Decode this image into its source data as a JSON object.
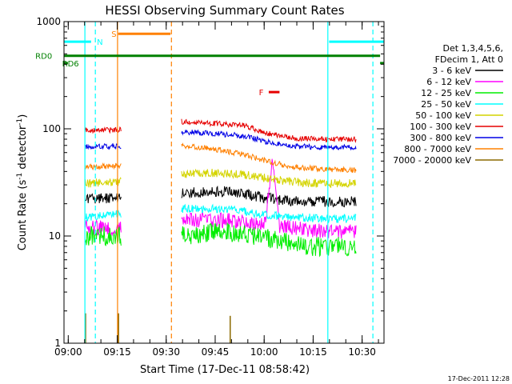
{
  "chart_data": {
    "type": "line",
    "title": "HESSI Observing Summary Count Rates",
    "xlabel": "Start Time (17-Dec-11 08:58:42)",
    "ylabel": "Count Rate (s⁻¹ detector⁻¹)",
    "ylabel_parts": {
      "pre": "Count Rate (s",
      "sup1": "-1",
      "mid": " detector",
      "sup2": "-1",
      "post": ")"
    },
    "scale": {
      "y": "log",
      "x": "time"
    },
    "x_unit": "minutes after 08:58:42",
    "xlim": [
      0,
      98
    ],
    "ylim": [
      1,
      1000
    ],
    "x_ticks": [
      {
        "label": "09:00",
        "t": 1.3
      },
      {
        "label": "09:15",
        "t": 16.3
      },
      {
        "label": "09:30",
        "t": 31.3
      },
      {
        "label": "09:45",
        "t": 46.3
      },
      {
        "label": "10:00",
        "t": 61.3
      },
      {
        "label": "10:15",
        "t": 76.3
      },
      {
        "label": "10:30",
        "t": 91.3
      }
    ],
    "y_ticks": [
      {
        "label": "1",
        "v": 1
      },
      {
        "label": "10",
        "v": 10
      },
      {
        "label": "100",
        "v": 100
      },
      {
        "label": "1000",
        "v": 1000
      }
    ],
    "legend": {
      "position": "right",
      "header": [
        "Det 1,3,4,5,6,",
        "FDecim 1, Att 0"
      ],
      "entries": [
        {
          "name": "3 - 6 keV",
          "color": "#000000"
        },
        {
          "name": "6 - 12 keV",
          "color": "#ff00ff"
        },
        {
          "name": "12 - 25 keV",
          "color": "#00ee00"
        },
        {
          "name": "25 - 50 keV",
          "color": "#00ffff"
        },
        {
          "name": "50 - 100 keV",
          "color": "#d4d400"
        },
        {
          "name": "100 - 300 keV",
          "color": "#e60000"
        },
        {
          "name": "300 - 800 keV",
          "color": "#0000e6"
        },
        {
          "name": "800 - 7000 keV",
          "color": "#ff8000"
        },
        {
          "name": "7000 - 20000 keV",
          "color": "#8b6a00"
        }
      ]
    },
    "segments": [
      {
        "start": 6.5,
        "end": 17.5
      },
      {
        "start": 36.0,
        "end": 89.5
      }
    ],
    "series": [
      {
        "name": "3 - 6 keV",
        "color": "#000000",
        "noise": 0.05,
        "points": [
          [
            6.5,
            22
          ],
          [
            17.5,
            23
          ],
          [
            36.0,
            25
          ],
          [
            45,
            26
          ],
          [
            52,
            26
          ],
          [
            60,
            23
          ],
          [
            70,
            21
          ],
          [
            80,
            21
          ],
          [
            89.5,
            21
          ]
        ]
      },
      {
        "name": "6 - 12 keV",
        "color": "#ff00ff",
        "noise": 0.07,
        "points": [
          [
            6.5,
            12
          ],
          [
            17.5,
            12
          ],
          [
            36.0,
            14
          ],
          [
            50,
            14
          ],
          [
            60,
            13
          ],
          [
            70,
            12
          ],
          [
            80,
            11
          ],
          [
            89.5,
            11
          ]
        ],
        "spike": {
          "t": 63.8,
          "v": 48,
          "width": 2.2
        }
      },
      {
        "name": "12 - 25 keV",
        "color": "#00ee00",
        "noise": 0.09,
        "points": [
          [
            6.5,
            10
          ],
          [
            17.5,
            10
          ],
          [
            36.0,
            10
          ],
          [
            50,
            11
          ],
          [
            58,
            10
          ],
          [
            66,
            9
          ],
          [
            74,
            8
          ],
          [
            82,
            8
          ],
          [
            89.5,
            8
          ]
        ]
      },
      {
        "name": "25 - 50 keV",
        "color": "#00ffff",
        "noise": 0.04,
        "points": [
          [
            6.5,
            15
          ],
          [
            17.5,
            16
          ],
          [
            36.0,
            18
          ],
          [
            50,
            18
          ],
          [
            60,
            16
          ],
          [
            70,
            15
          ],
          [
            80,
            14.5
          ],
          [
            89.5,
            14.5
          ]
        ]
      },
      {
        "name": "50 - 100 keV",
        "color": "#d4d400",
        "noise": 0.04,
        "points": [
          [
            6.5,
            31
          ],
          [
            17.5,
            32
          ],
          [
            36.0,
            38
          ],
          [
            48,
            39
          ],
          [
            56,
            37
          ],
          [
            66,
            33
          ],
          [
            76,
            31
          ],
          [
            89.5,
            31
          ]
        ]
      },
      {
        "name": "100 - 300 keV",
        "color": "#e60000",
        "noise": 0.025,
        "points": [
          [
            6.5,
            97
          ],
          [
            17.5,
            98
          ],
          [
            36.0,
            117
          ],
          [
            44,
            113
          ],
          [
            55,
            108
          ],
          [
            62,
            91
          ],
          [
            70,
            82
          ],
          [
            80,
            80
          ],
          [
            89.5,
            80
          ]
        ]
      },
      {
        "name": "300 - 800 keV",
        "color": "#0000e6",
        "noise": 0.025,
        "points": [
          [
            6.5,
            68
          ],
          [
            17.5,
            69
          ],
          [
            36.0,
            94
          ],
          [
            44,
            91
          ],
          [
            55,
            86
          ],
          [
            62,
            76
          ],
          [
            70,
            69
          ],
          [
            80,
            67
          ],
          [
            89.5,
            67
          ]
        ]
      },
      {
        "name": "800 - 7000 keV",
        "color": "#ff8000",
        "noise": 0.025,
        "points": [
          [
            6.5,
            44
          ],
          [
            17.5,
            45
          ],
          [
            36.0,
            70
          ],
          [
            44,
            66
          ],
          [
            55,
            58
          ],
          [
            62,
            50
          ],
          [
            70,
            44
          ],
          [
            80,
            42
          ],
          [
            89.5,
            41
          ]
        ]
      },
      {
        "name": "7000 - 20000 keV",
        "color": "#8b6a00",
        "noise": 0.0,
        "points": [
          [
            6.5,
            1
          ],
          [
            89.5,
            1
          ]
        ],
        "bursts": [
          {
            "t": 6.6,
            "v": 1.9
          },
          {
            "t": 16.7,
            "v": 1.9
          },
          {
            "t": 50.9,
            "v": 1.8
          }
        ]
      }
    ],
    "vertical_markers": [
      {
        "t": 6.4,
        "color": "#00ffff",
        "style": "solid"
      },
      {
        "t": 9.6,
        "color": "#00ffff",
        "style": "dashed"
      },
      {
        "t": 16.4,
        "color": "#ff8000",
        "style": "solid"
      },
      {
        "t": 32.9,
        "color": "#ff8000",
        "style": "dashed"
      },
      {
        "t": 80.8,
        "color": "#00ffff",
        "style": "solid"
      },
      {
        "t": 94.6,
        "color": "#00ffff",
        "style": "dashed"
      }
    ],
    "flag_bars": [
      {
        "label": "N",
        "color": "#00ffff",
        "level": 650,
        "ranges": [
          [
            0,
            8.3
          ],
          [
            81.2,
            98
          ]
        ],
        "label_at": 11.0
      },
      {
        "label": "S",
        "color": "#ff8000",
        "level": 770,
        "ranges": [
          [
            16.6,
            32.6
          ]
        ],
        "label_at": 15.3
      },
      {
        "label": "F",
        "color": "#e60000",
        "level": 220,
        "ranges": [
          [
            62.7,
            66.0
          ]
        ],
        "label_at": 60.4
      },
      {
        "label": "RD0",
        "color": "#008000",
        "level": 480,
        "ranges": [
          [
            0,
            96.8
          ]
        ],
        "label_at": -6.2
      },
      {
        "label": "RD6",
        "color": "#008000",
        "level": 410,
        "ranges": [
          [
            0,
            1.2
          ],
          [
            96.8,
            98
          ]
        ],
        "label_at": 2.0
      }
    ]
  },
  "footer": {
    "date_stamp": "17-Dec-2011 12:28"
  }
}
